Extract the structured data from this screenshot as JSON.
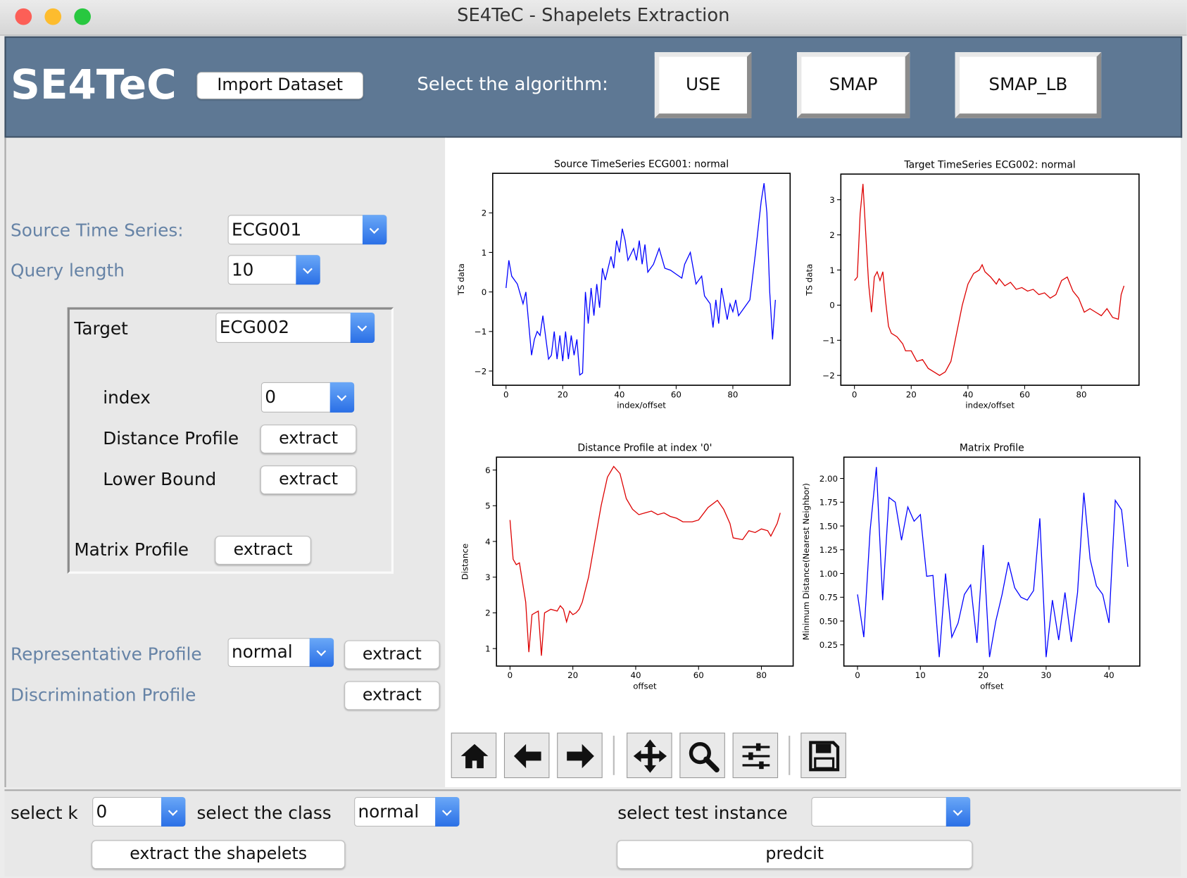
{
  "window": {
    "title": "SE4TeC - Shapelets Extraction"
  },
  "header": {
    "logo": "SE4TeC",
    "import_button": "Import Dataset",
    "algorithm_label": "Select the algorithm:",
    "algorithms": [
      "USE",
      "SMAP",
      "SMAP_LB"
    ]
  },
  "left_panel": {
    "source_label": "Source Time Series:",
    "source_value": "ECG001",
    "query_label": "Query length",
    "query_value": "10",
    "target": {
      "label": "Target",
      "value": "ECG002",
      "index_label": "index",
      "index_value": "0",
      "distance_label": "Distance Profile",
      "distance_button": "extract",
      "lower_bound_label": "Lower Bound",
      "lower_bound_button": "extract",
      "matrix_label": "Matrix Profile",
      "matrix_button": "extract"
    },
    "representative_label": "Representative Profile",
    "representative_value": "normal",
    "representative_button": "extract",
    "discrimination_label": "Discrimination Profile",
    "discrimination_button": "extract"
  },
  "bottom_panel": {
    "k_label": "select k",
    "k_value": "0",
    "class_label": "select the class",
    "class_value": "normal",
    "test_label": "select test instance",
    "extract_button": "extract the shapelets",
    "predict_button": "predcit"
  },
  "chart_data": [
    {
      "type": "line",
      "title": "Source TimeSeries ECG001: normal",
      "xlabel": "index/offset",
      "ylabel": "TS data",
      "color": "#0000ff",
      "x": [
        0,
        1,
        2,
        4,
        6,
        7,
        9,
        10,
        11,
        12,
        13,
        15,
        16,
        17,
        18,
        19,
        20,
        21,
        22,
        23,
        24,
        25,
        26,
        27,
        28,
        29,
        30,
        31,
        32,
        33,
        34,
        35,
        37,
        38,
        39,
        40,
        41,
        42,
        43,
        45,
        46,
        47,
        48,
        49,
        50,
        52,
        54,
        56,
        58,
        60,
        62,
        63,
        65,
        67,
        69,
        70,
        72,
        73,
        74,
        75,
        76,
        78,
        79,
        80,
        81,
        82,
        84,
        86,
        88,
        90,
        91,
        92,
        93,
        94,
        95
      ],
      "values": [
        0.1,
        0.8,
        0.4,
        0.2,
        -0.3,
        0,
        -1.6,
        -1.2,
        -1.0,
        -1.1,
        -0.6,
        -1.7,
        -1.6,
        -1.0,
        -1.7,
        -1.1,
        -1.75,
        -1.0,
        -1.7,
        -1.1,
        -1.6,
        -1.2,
        -2.1,
        -2.05,
        0.0,
        -0.8,
        0.1,
        -0.6,
        0.2,
        -0.4,
        0.6,
        0.3,
        0.9,
        0.6,
        1.3,
        1.0,
        1.6,
        1.3,
        0.8,
        1.1,
        0.8,
        1.3,
        0.7,
        1.2,
        0.5,
        0.7,
        1.1,
        0.6,
        0.55,
        0.45,
        0.35,
        0.7,
        1.0,
        0.2,
        0.4,
        -0.1,
        -0.3,
        -0.9,
        -0.2,
        -0.8,
        0.1,
        -0.7,
        -0.3,
        -0.5,
        -0.2,
        -0.6,
        -0.4,
        -0.2,
        1.0,
        2.3,
        2.75,
        2.0,
        0.0,
        -1.2,
        -0.2
      ],
      "xlim": [
        -4.7,
        100.2
      ],
      "ylim": [
        -2.36,
        3.0
      ],
      "xticks": [
        0,
        20,
        40,
        60,
        80
      ],
      "yticks": [
        {
          "value": -2,
          "label": "−2"
        },
        {
          "value": -1,
          "label": "−1"
        },
        0,
        1,
        2
      ]
    },
    {
      "type": "line",
      "title": "Target TimeSeries ECG002: normal",
      "xlabel": "index/offset",
      "ylabel": "TS data",
      "color": "#dd0000",
      "x": [
        0,
        1,
        2,
        3,
        4,
        5,
        6,
        7,
        8,
        9,
        10,
        11,
        12,
        13,
        15,
        17,
        18,
        20,
        22,
        24,
        26,
        28,
        30,
        32,
        34,
        36,
        38,
        40,
        42,
        44,
        45,
        46,
        48,
        50,
        51,
        53,
        55,
        57,
        59,
        61,
        63,
        65,
        67,
        69,
        71,
        73,
        75,
        77,
        79,
        81,
        83,
        85,
        87,
        89,
        91,
        93,
        94,
        95
      ],
      "values": [
        0.7,
        0.8,
        2.6,
        3.45,
        2.0,
        0.6,
        -0.2,
        0.8,
        0.95,
        0.7,
        0.95,
        0.1,
        -0.6,
        -0.8,
        -0.9,
        -1.1,
        -1.3,
        -1.3,
        -1.6,
        -1.55,
        -1.8,
        -1.9,
        -2.0,
        -1.9,
        -1.6,
        -0.8,
        0.0,
        0.6,
        0.9,
        1.0,
        1.15,
        0.95,
        0.8,
        0.6,
        0.75,
        0.55,
        0.65,
        0.45,
        0.5,
        0.4,
        0.45,
        0.3,
        0.35,
        0.2,
        0.3,
        0.7,
        0.8,
        0.4,
        0.2,
        -0.2,
        -0.1,
        -0.2,
        -0.3,
        -0.1,
        -0.35,
        -0.4,
        0.3,
        0.55
      ],
      "xlim": [
        -4.8,
        100.3
      ],
      "ylim": [
        -2.28,
        3.73
      ],
      "xticks": [
        0,
        20,
        40,
        60,
        80
      ],
      "yticks": [
        {
          "value": -2,
          "label": "−2"
        },
        {
          "value": -1,
          "label": "−1"
        },
        0,
        1,
        2,
        3
      ]
    },
    {
      "type": "line",
      "title": "Distance Profile at index '0'",
      "xlabel": "offset",
      "ylabel": "Distance",
      "color": "#dd0000",
      "x": [
        0,
        1,
        2,
        3,
        5,
        6,
        7,
        9,
        10,
        11,
        13,
        15,
        16,
        17,
        18,
        19,
        20,
        21,
        22,
        23,
        25,
        27,
        29,
        31,
        33,
        35,
        37,
        39,
        41,
        43,
        45,
        47,
        49,
        51,
        53,
        55,
        57,
        58,
        60,
        63,
        66,
        68,
        70,
        71,
        74,
        76,
        78,
        80,
        82,
        83,
        85,
        86
      ],
      "values": [
        4.6,
        3.5,
        3.35,
        3.4,
        2.3,
        0.9,
        1.95,
        2.05,
        0.8,
        2.0,
        2.1,
        2.05,
        2.2,
        2.1,
        1.75,
        2.05,
        1.95,
        2.0,
        2.1,
        2.3,
        3.0,
        4.0,
        5.0,
        5.8,
        6.1,
        5.9,
        5.2,
        4.9,
        4.75,
        4.8,
        4.85,
        4.75,
        4.8,
        4.7,
        4.65,
        4.55,
        4.55,
        4.55,
        4.6,
        4.95,
        5.15,
        4.9,
        4.5,
        4.1,
        4.05,
        4.3,
        4.25,
        4.35,
        4.3,
        4.15,
        4.5,
        4.8
      ],
      "xlim": [
        -4.3,
        90.1
      ],
      "ylim": [
        0.51,
        6.36
      ],
      "xticks": [
        0,
        20,
        40,
        60,
        80
      ],
      "yticks": [
        1,
        2,
        3,
        4,
        5,
        6
      ]
    },
    {
      "type": "line",
      "title": "Matrix Profile",
      "xlabel": "offset",
      "ylabel": "Minimum Distance(Nearest Neighbor)",
      "color": "#0000ff",
      "x": [
        0,
        1,
        2,
        3,
        4,
        5,
        6,
        7,
        8,
        9,
        10,
        11,
        12,
        13,
        14,
        15,
        16,
        17,
        18,
        19,
        20,
        21,
        22,
        23,
        24,
        25,
        26,
        27,
        28,
        29,
        30,
        31,
        32,
        33,
        34,
        35,
        36,
        37,
        38,
        39,
        40,
        41,
        42,
        43
      ],
      "values": [
        0.78,
        0.33,
        1.45,
        2.12,
        0.72,
        1.8,
        1.75,
        1.35,
        1.7,
        1.55,
        1.62,
        0.97,
        0.98,
        0.12,
        1.0,
        0.33,
        0.48,
        0.78,
        0.88,
        0.27,
        1.3,
        0.12,
        0.5,
        0.78,
        1.12,
        0.85,
        0.75,
        0.72,
        0.82,
        1.58,
        0.12,
        0.72,
        0.3,
        0.8,
        0.28,
        0.8,
        1.85,
        1.15,
        0.87,
        0.78,
        0.48,
        1.77,
        1.67,
        1.07
      ],
      "xlim": [
        -2.17,
        44.9
      ],
      "ylim": [
        0.026,
        2.224
      ],
      "xticks": [
        0,
        10,
        20,
        30,
        40
      ],
      "yticks": [
        0.25,
        {
          "value": 0.5,
          "label": "0.50"
        },
        0.75,
        {
          "value": 1,
          "label": "1.00"
        },
        1.25,
        {
          "value": 1.5,
          "label": "1.50"
        },
        1.75,
        {
          "value": 2,
          "label": "2.00"
        }
      ]
    }
  ]
}
